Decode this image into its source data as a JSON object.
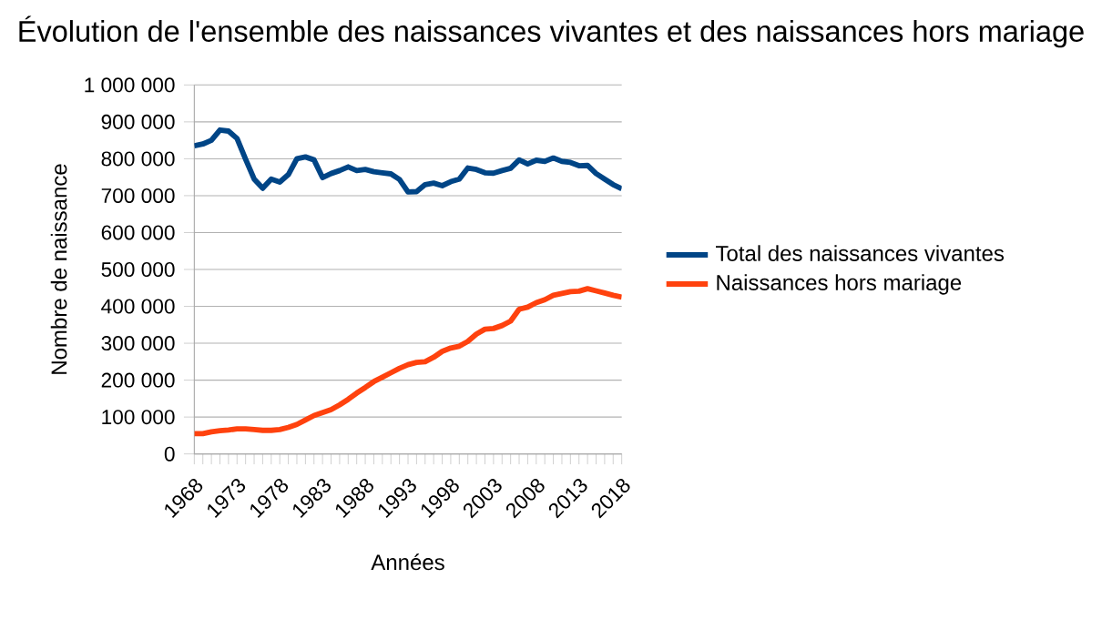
{
  "chart_data": {
    "type": "line",
    "title": "Évolution de l'ensemble des naissances vivantes et des naissances hors mariage",
    "xlabel": "Années",
    "ylabel": "Nombre de naissance",
    "x": [
      1968,
      1969,
      1970,
      1971,
      1972,
      1973,
      1974,
      1975,
      1976,
      1977,
      1978,
      1979,
      1980,
      1981,
      1982,
      1983,
      1984,
      1985,
      1986,
      1987,
      1988,
      1989,
      1990,
      1991,
      1992,
      1993,
      1994,
      1995,
      1996,
      1997,
      1998,
      1999,
      2000,
      2001,
      2002,
      2003,
      2004,
      2005,
      2006,
      2007,
      2008,
      2009,
      2010,
      2011,
      2012,
      2013,
      2014,
      2015,
      2016,
      2017,
      2018
    ],
    "series": [
      {
        "name": "Total des naissances vivantes",
        "color": "#004586",
        "values": [
          835000,
          840000,
          850000,
          878000,
          875000,
          855000,
          799000,
          745000,
          720000,
          745000,
          737000,
          757000,
          800000,
          805000,
          797000,
          749000,
          760000,
          768000,
          778000,
          768000,
          771000,
          765000,
          762000,
          759000,
          744000,
          710000,
          711000,
          730000,
          734000,
          727000,
          738000,
          745000,
          775000,
          771000,
          762000,
          761000,
          768000,
          774000,
          797000,
          786000,
          796000,
          793000,
          802000,
          793000,
          790000,
          781000,
          782000,
          760000,
          745000,
          730000,
          719000
        ]
      },
      {
        "name": "Naissances hors mariage",
        "color": "#ff420e",
        "values": [
          55000,
          55000,
          60000,
          63000,
          65000,
          68000,
          68000,
          66000,
          64000,
          64000,
          66000,
          72000,
          80000,
          92000,
          104000,
          112000,
          120000,
          133000,
          148000,
          165000,
          180000,
          196000,
          208000,
          220000,
          232000,
          242000,
          248000,
          250000,
          262000,
          278000,
          287000,
          292000,
          305000,
          325000,
          338000,
          340000,
          348000,
          360000,
          392000,
          398000,
          410000,
          418000,
          430000,
          435000,
          440000,
          441000,
          448000,
          442000,
          436000,
          430000,
          425000
        ]
      }
    ],
    "xlim": [
      1968,
      2018
    ],
    "xticks": [
      1968,
      {
        "value": 1969,
        "label": null
      },
      {
        "value": 1970,
        "label": null
      },
      {
        "value": 1971,
        "label": null
      },
      {
        "value": 1972,
        "label": null
      },
      1973,
      {
        "value": 1974,
        "label": null
      },
      {
        "value": 1975,
        "label": null
      },
      {
        "value": 1976,
        "label": null
      },
      {
        "value": 1977,
        "label": null
      },
      1978,
      {
        "value": 1979,
        "label": null
      },
      {
        "value": 1980,
        "label": null
      },
      {
        "value": 1981,
        "label": null
      },
      {
        "value": 1982,
        "label": null
      },
      1983,
      {
        "value": 1984,
        "label": null
      },
      {
        "value": 1985,
        "label": null
      },
      {
        "value": 1986,
        "label": null
      },
      {
        "value": 1987,
        "label": null
      },
      1988,
      {
        "value": 1989,
        "label": null
      },
      {
        "value": 1990,
        "label": null
      },
      {
        "value": 1991,
        "label": null
      },
      {
        "value": 1992,
        "label": null
      },
      1993,
      {
        "value": 1994,
        "label": null
      },
      {
        "value": 1995,
        "label": null
      },
      {
        "value": 1996,
        "label": null
      },
      {
        "value": 1997,
        "label": null
      },
      1998,
      {
        "value": 1999,
        "label": null
      },
      {
        "value": 2000,
        "label": null
      },
      {
        "value": 2001,
        "label": null
      },
      {
        "value": 2002,
        "label": null
      },
      2003,
      {
        "value": 2004,
        "label": null
      },
      {
        "value": 2005,
        "label": null
      },
      {
        "value": 2006,
        "label": null
      },
      {
        "value": 2007,
        "label": null
      },
      2008,
      {
        "value": 2009,
        "label": null
      },
      {
        "value": 2010,
        "label": null
      },
      {
        "value": 2011,
        "label": null
      },
      {
        "value": 2012,
        "label": null
      },
      2013,
      {
        "value": 2014,
        "label": null
      },
      {
        "value": 2015,
        "label": null
      },
      {
        "value": 2016,
        "label": null
      },
      {
        "value": 2017,
        "label": null
      },
      2018
    ],
    "ylim": [
      0,
      1000000
    ],
    "yticks": [
      {
        "value": 0,
        "label": "0"
      },
      {
        "value": 100000,
        "label": "100 000"
      },
      {
        "value": 200000,
        "label": "200 000"
      },
      {
        "value": 300000,
        "label": "300 000"
      },
      {
        "value": 400000,
        "label": "400 000"
      },
      {
        "value": 500000,
        "label": "500 000"
      },
      {
        "value": 600000,
        "label": "600 000"
      },
      {
        "value": 700000,
        "label": "700 000"
      },
      {
        "value": 800000,
        "label": "800 000"
      },
      {
        "value": 900000,
        "label": "900 000"
      },
      {
        "value": 1000000,
        "label": "1 000 000"
      }
    ],
    "grid": "y",
    "legend": "right",
    "marker": "none",
    "line_style": "solid"
  }
}
